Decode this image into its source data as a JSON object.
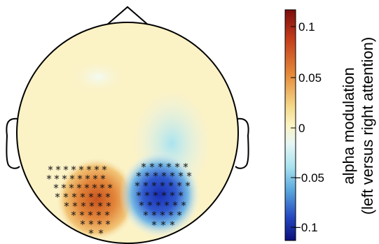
{
  "colorbar": {
    "ticks": [
      "0.1",
      "0.05",
      "0",
      "−0.05",
      "−0.1"
    ],
    "label_line1": "alpha modulation",
    "label_line2": "(left versus right attention)",
    "colors": [
      "#7a0d0d",
      "#c23a1a",
      "#e58a3a",
      "#f5d98a",
      "#fbf3c4",
      "#e6f6f4",
      "#a9e3ef",
      "#5aa9de",
      "#2447c0",
      "#0b0f7a"
    ]
  },
  "topo": {
    "background": "#fbf2c6",
    "left_cluster_color": "#d9702e",
    "right_cluster_color": "#2a44c6",
    "marker_glyph": "*",
    "left_cluster_count": 48,
    "right_cluster_count": 40
  }
}
